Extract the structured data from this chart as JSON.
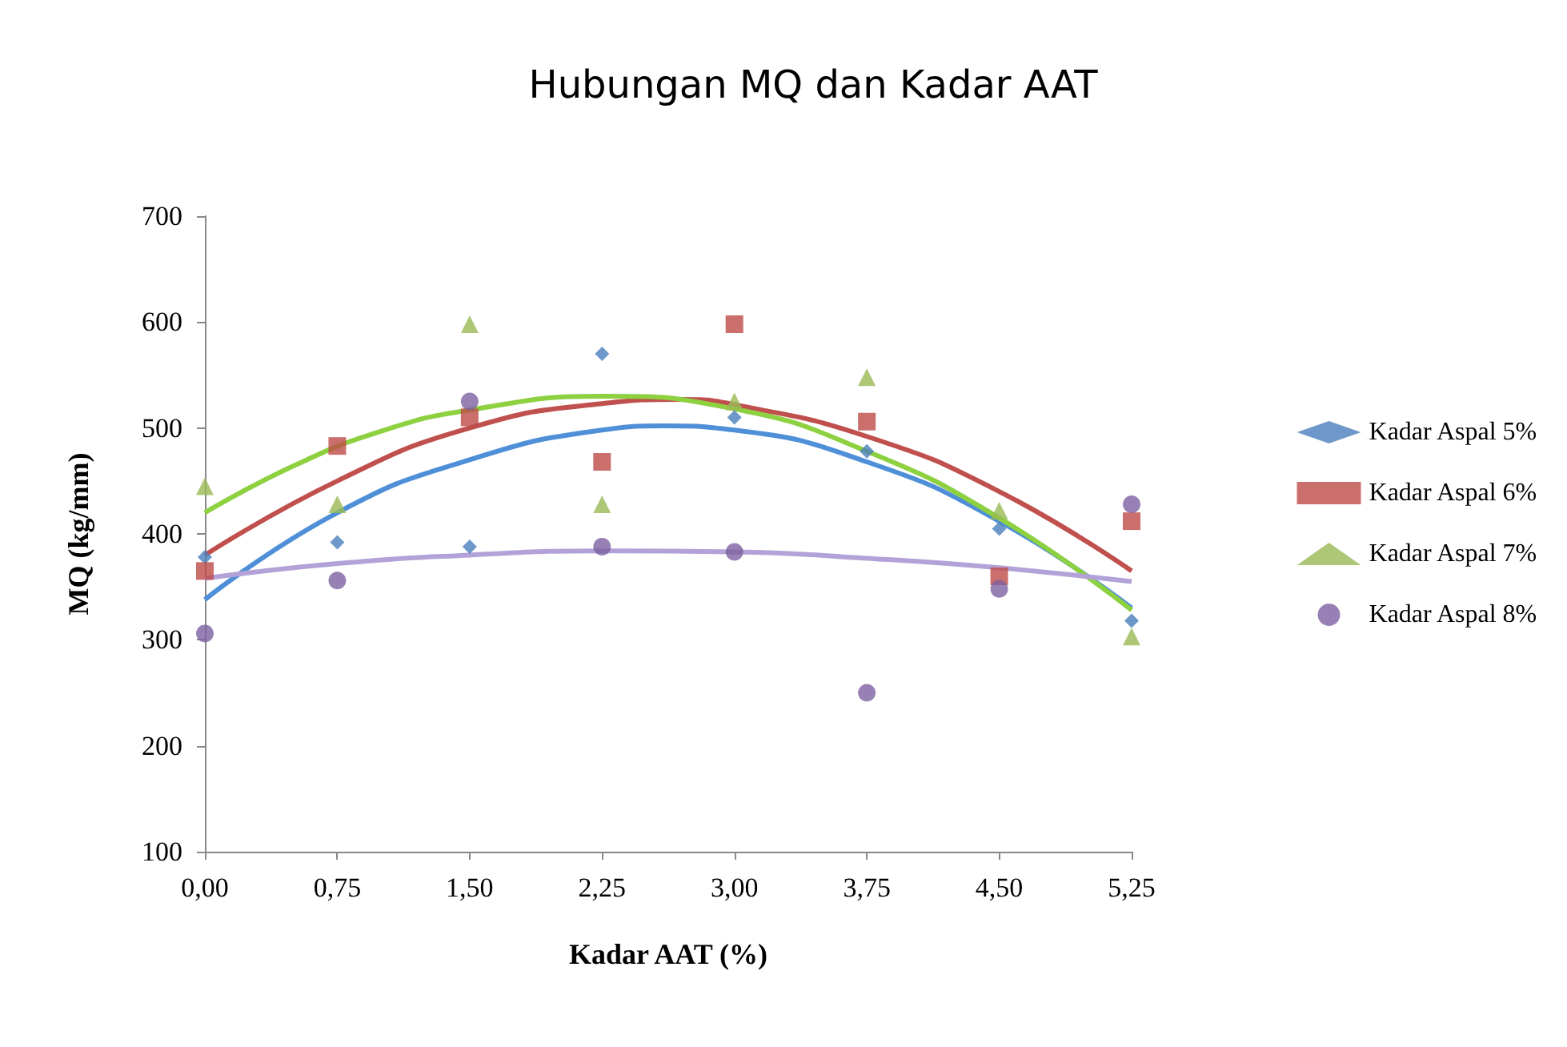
{
  "chart_data": {
    "type": "scatter",
    "title": "Hubungan MQ dan Kadar AAT",
    "xlabel": "Kadar AAT (%)",
    "ylabel": "MQ (kg/mm)",
    "x": [
      0,
      0.75,
      1.5,
      2.25,
      3,
      3.75,
      4.5,
      5.25
    ],
    "xlim": [
      0,
      5.25
    ],
    "xticks": [
      {
        "value": 0,
        "label": "0,00"
      },
      {
        "value": 0.75,
        "label": "0,75"
      },
      {
        "value": 1.5,
        "label": "1,50"
      },
      {
        "value": 2.25,
        "label": "2,25"
      },
      {
        "value": 3,
        "label": "3,00"
      },
      {
        "value": 3.75,
        "label": "3,75"
      },
      {
        "value": 4.5,
        "label": "4,50"
      },
      {
        "value": 5.25,
        "label": "5,25"
      }
    ],
    "ylim": [
      100,
      700
    ],
    "yticks": [
      100,
      200,
      300,
      400,
      500,
      600,
      700
    ],
    "grid": false,
    "legend": "right",
    "series": [
      {
        "name": "Kadar Aspal 5%",
        "color": "#4a7ebb",
        "marker": "diamond",
        "values": [
          378,
          392,
          388,
          570,
          510,
          478,
          405,
          318
        ]
      },
      {
        "name": "Kadar Aspal 6%",
        "color": "#be4b48",
        "marker": "square",
        "values": [
          365,
          483,
          510,
          468,
          598,
          506,
          360,
          412
        ]
      },
      {
        "name": "Kadar Aspal 7%",
        "color": "#98b954",
        "marker": "triangle",
        "values": [
          445,
          428,
          598,
          428,
          525,
          548,
          422,
          303
        ]
      },
      {
        "name": "Kadar Aspal 8%",
        "color": "#7d60a0",
        "marker": "circle",
        "values": [
          306,
          356,
          525,
          388,
          383,
          250,
          348,
          428
        ]
      },
      {
        "type": "line",
        "color": "#4f8fd8",
        "marker": "none",
        "x": [
          0,
          0.75,
          1.5,
          2.25,
          2.6,
          3,
          3.75,
          4.5,
          5.25
        ],
        "values": [
          338,
          420,
          470,
          498,
          502,
          498,
          468,
          412,
          330
        ]
      },
      {
        "type": "line",
        "color": "#c0504d",
        "marker": "none",
        "x": [
          0,
          0.75,
          1.5,
          2.25,
          2.7,
          3,
          3.75,
          4.5,
          5.25
        ],
        "values": [
          380,
          450,
          500,
          523,
          527,
          522,
          492,
          440,
          365
        ]
      },
      {
        "type": "line",
        "color": "#8dd040",
        "marker": "none",
        "x": [
          0,
          0.5,
          1,
          1.5,
          2.25,
          3,
          3.75,
          4.5,
          5.25
        ],
        "values": [
          420,
          464,
          497,
          517,
          530,
          518,
          478,
          415,
          328
        ]
      },
      {
        "type": "line",
        "color": "#b3a2d8",
        "marker": "none",
        "x": [
          0,
          0.75,
          1.5,
          2.25,
          3,
          3.75,
          4.5,
          5.25
        ],
        "values": [
          358,
          372,
          380,
          384,
          383,
          377,
          368,
          355
        ]
      }
    ]
  }
}
